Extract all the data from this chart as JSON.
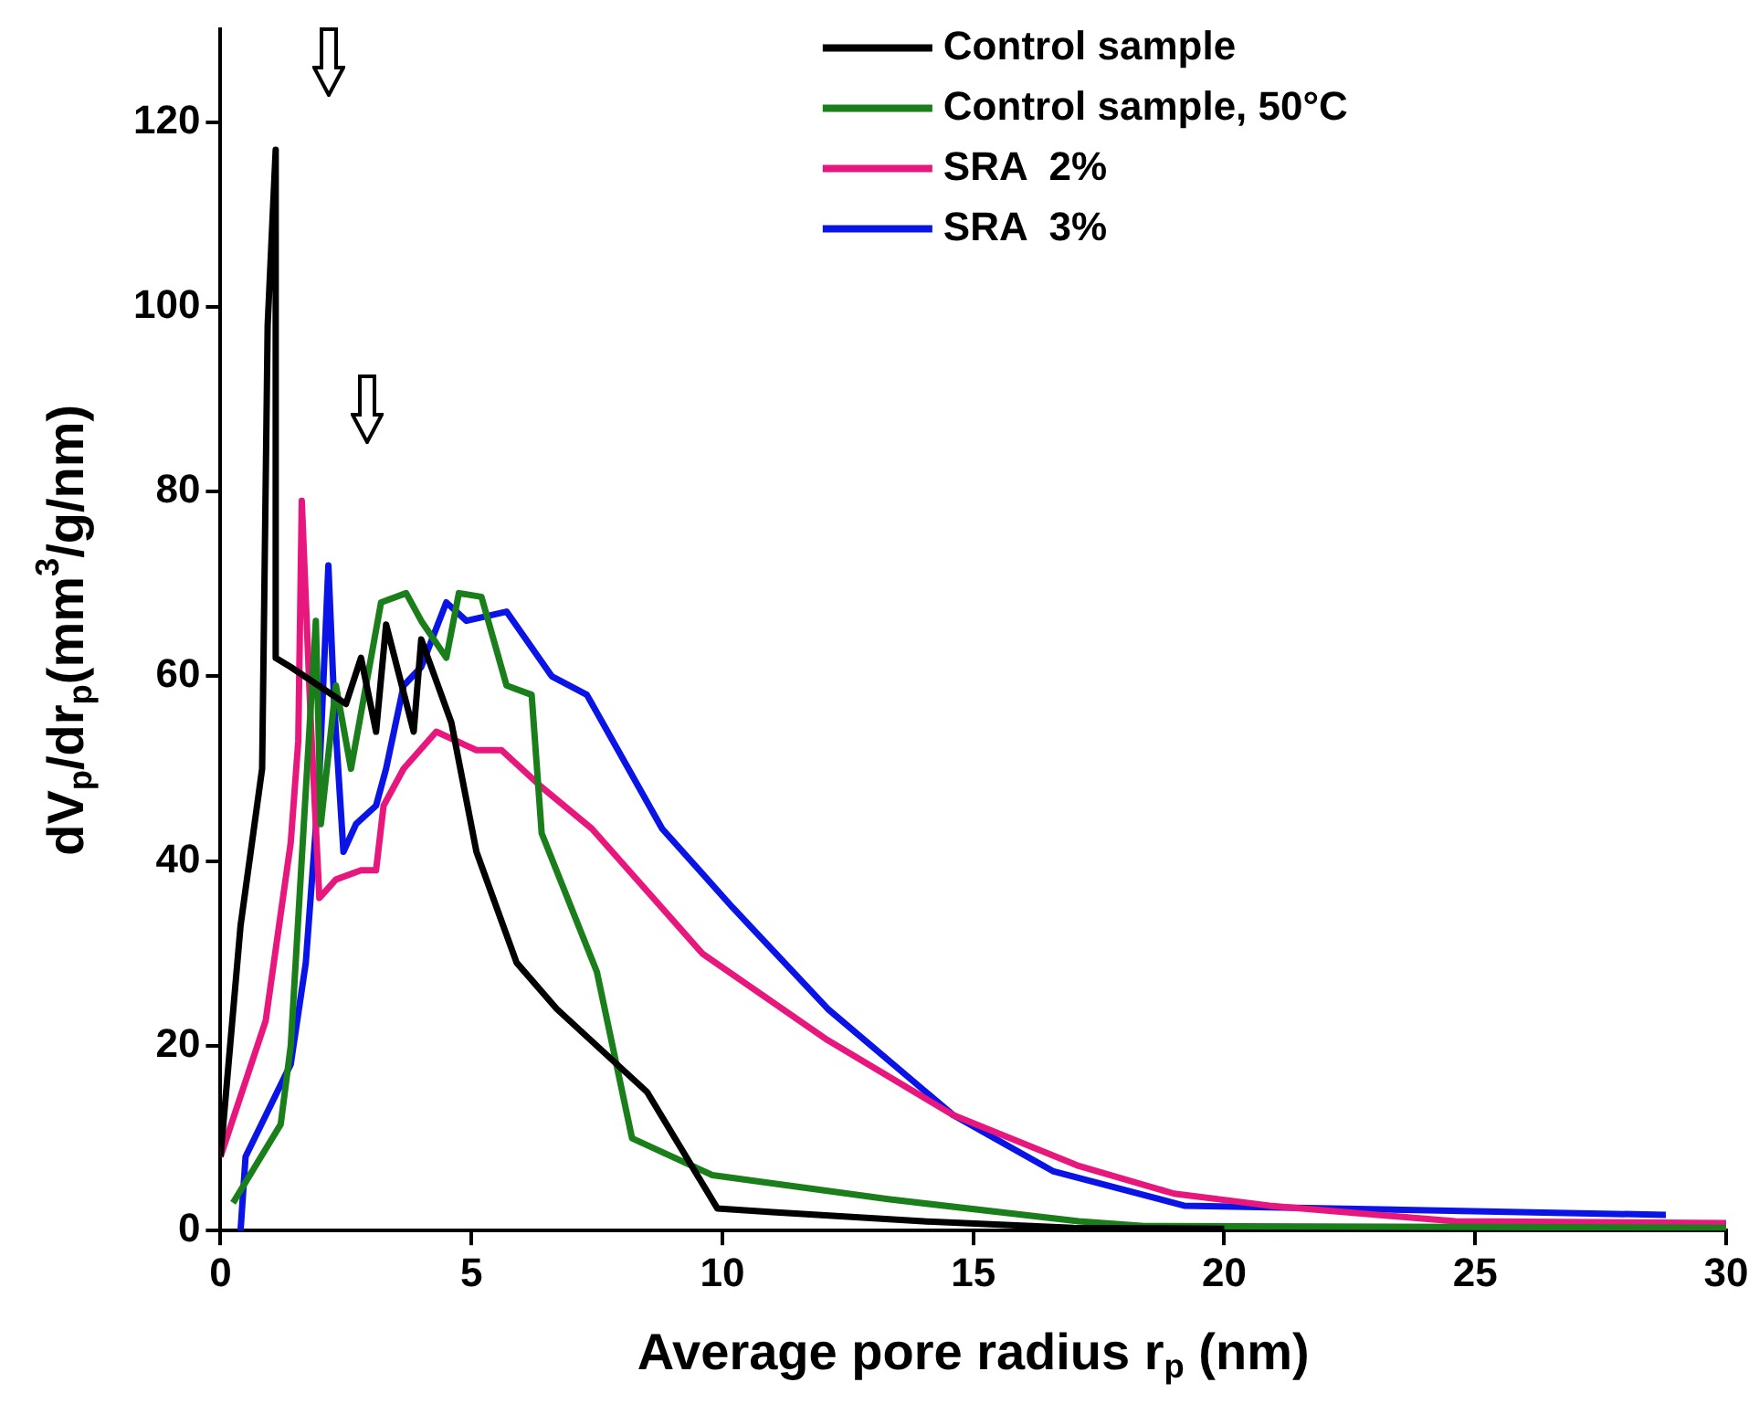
{
  "chart_data": {
    "type": "line",
    "xlabel": "Average pore radius r$_{p}$ (nm)",
    "ylabel": "dV$_{p}$/dr$_{p}$(mm$^{3}$/g/nm)",
    "xlim": [
      0,
      30
    ],
    "ylim": [
      0,
      130
    ],
    "xticks": [
      0,
      5,
      10,
      15,
      20,
      25,
      30
    ],
    "yticks": [
      0,
      20,
      40,
      60,
      80,
      100,
      120
    ],
    "grid": false,
    "legend": "top right",
    "marker": "none",
    "line_style": "solid",
    "series": [
      {
        "name": "Control sample",
        "color": "#000000",
        "x": [
          0,
          0.4,
          0.83,
          0.94,
          1.1,
          1.1,
          1.4,
          2.5,
          2.8,
          3.1,
          3.3,
          3.85,
          4.0,
          4.6,
          5.1,
          5.9,
          6.7,
          8.5,
          9.9,
          11,
          14,
          17,
          20
        ],
        "values": [
          8,
          33,
          50,
          98,
          117,
          62,
          61,
          57,
          62,
          54,
          65.6,
          54,
          64,
          55,
          41,
          29,
          24,
          15,
          2.4,
          2,
          1,
          0.3,
          0.2
        ]
      },
      {
        "name": "Control sample, 50°C",
        "color": "#1a7f1a",
        "x": [
          0.25,
          1.2,
          1.4,
          1.9,
          2.0,
          2.3,
          2.6,
          3.2,
          3.7,
          4.0,
          4.5,
          4.75,
          5.2,
          5.7,
          6.2,
          6.4,
          7.5,
          8.2,
          9.8,
          13.3,
          17.1,
          18.4,
          30
        ],
        "values": [
          3,
          11.5,
          20,
          66,
          44,
          59,
          50,
          68,
          69,
          66,
          62,
          69,
          68.6,
          59,
          58,
          43,
          28,
          10,
          6,
          3.4,
          1,
          0.5,
          0.3
        ]
      },
      {
        "name": "SRA  2%",
        "color": "#e8177d",
        "x": [
          0,
          0.9,
          1.4,
          1.55,
          1.62,
          1.8,
          1.97,
          2.3,
          2.8,
          3.1,
          3.25,
          3.65,
          4.3,
          5.1,
          5.6,
          6.4,
          7.4,
          9.6,
          12.1,
          14.6,
          17.1,
          19,
          20.9,
          24.6,
          30
        ],
        "values": [
          8,
          22.7,
          42,
          53,
          79,
          55,
          36,
          38,
          39,
          39,
          46,
          50,
          54,
          52,
          52,
          48,
          43.5,
          30,
          20.6,
          12.5,
          7,
          4,
          2.7,
          1,
          0.8
        ]
      },
      {
        "name": "SRA  3%",
        "color": "#0a14e6",
        "x": [
          0.4,
          0.5,
          1.4,
          1.7,
          1.96,
          2.15,
          2.27,
          2.45,
          2.7,
          3.1,
          3.3,
          3.65,
          4.0,
          4.5,
          4.9,
          5.7,
          6.6,
          7.3,
          8.8,
          10.2,
          12.1,
          14.6,
          16.6,
          19.2,
          28.8
        ],
        "values": [
          0,
          8,
          18,
          29,
          48,
          72,
          56.5,
          41,
          44,
          46,
          50,
          59,
          61,
          68,
          66,
          67,
          60,
          58,
          43.5,
          35,
          24,
          12.5,
          6.4,
          2.7,
          1.7
        ]
      }
    ]
  }
}
